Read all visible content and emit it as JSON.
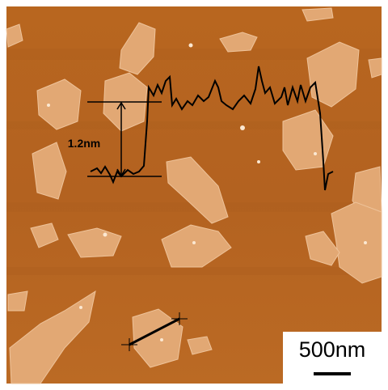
{
  "annotations": {
    "height_label": "1.2nm",
    "scale_bar": "500nm"
  }
}
